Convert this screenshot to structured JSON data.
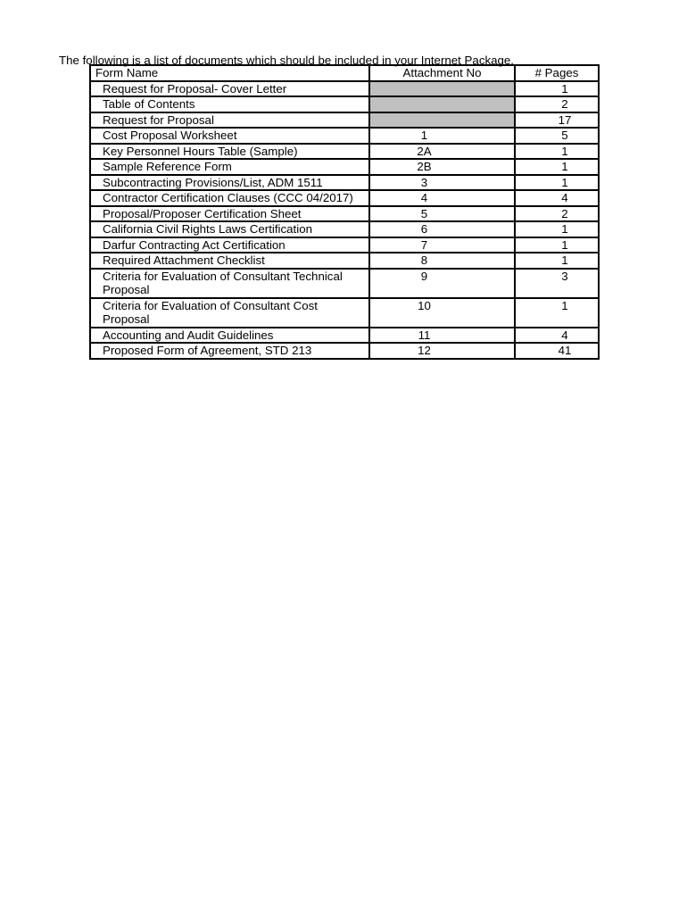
{
  "intro": {
    "text": "The following is a list of documents which should be included in your Internet Package."
  },
  "table": {
    "headers": {
      "form_name": "Form Name",
      "attachment_no": "Attachment No",
      "pages": "# Pages"
    },
    "rows": [
      {
        "form_name": "Request for Proposal- Cover Letter",
        "attachment_no": "",
        "pages": "1",
        "attachment_shaded": true
      },
      {
        "form_name": "Table of Contents",
        "attachment_no": "",
        "pages": "2",
        "attachment_shaded": true
      },
      {
        "form_name": "Request for Proposal",
        "attachment_no": "",
        "pages": "17",
        "attachment_shaded": true
      },
      {
        "form_name": "Cost Proposal Worksheet",
        "attachment_no": "1",
        "pages": "5",
        "attachment_shaded": false
      },
      {
        "form_name": "Key Personnel Hours Table (Sample)",
        "attachment_no": "2A",
        "pages": "1",
        "attachment_shaded": false
      },
      {
        "form_name": "Sample Reference Form",
        "attachment_no": "2B",
        "pages": "1",
        "attachment_shaded": false
      },
      {
        "form_name": "Subcontracting Provisions/List, ADM 1511",
        "attachment_no": "3",
        "pages": "1",
        "attachment_shaded": false
      },
      {
        "form_name": "Contractor Certification Clauses (CCC 04/2017)",
        "attachment_no": "4",
        "pages": "4",
        "attachment_shaded": false
      },
      {
        "form_name": "Proposal/Proposer Certification Sheet",
        "attachment_no": "5",
        "pages": "2",
        "attachment_shaded": false
      },
      {
        "form_name": "California Civil Rights Laws Certification",
        "attachment_no": "6",
        "pages": "1",
        "attachment_shaded": false
      },
      {
        "form_name": "Darfur Contracting Act Certification",
        "attachment_no": "7",
        "pages": "1",
        "attachment_shaded": false
      },
      {
        "form_name": "Required Attachment Checklist",
        "attachment_no": "8",
        "pages": "1",
        "attachment_shaded": false
      },
      {
        "form_name": "Criteria for Evaluation of Consultant Technical Proposal",
        "attachment_no": "9",
        "pages": "3",
        "attachment_shaded": false
      },
      {
        "form_name": "Criteria for Evaluation of Consultant Cost Proposal",
        "attachment_no": "10",
        "pages": "1",
        "attachment_shaded": false
      },
      {
        "form_name": "Accounting and Audit Guidelines",
        "attachment_no": "11",
        "pages": "4",
        "attachment_shaded": false
      },
      {
        "form_name": "Proposed Form of Agreement, STD 213",
        "attachment_no": "12",
        "pages": "41",
        "attachment_shaded": false
      }
    ]
  },
  "colors": {
    "shaded_cell": "#c0c0c0",
    "border": "#000000",
    "text": "#000000",
    "page_background": "#ffffff"
  }
}
